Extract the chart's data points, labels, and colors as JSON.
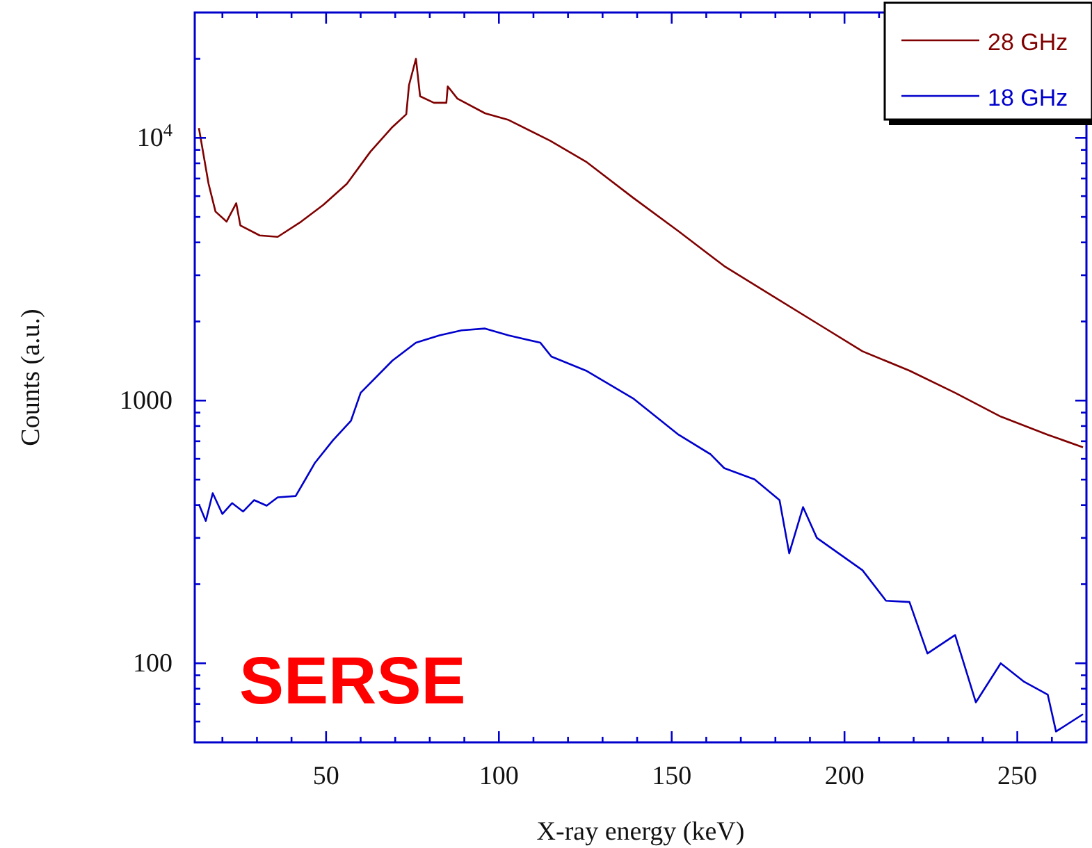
{
  "chart_data": {
    "type": "line",
    "xlabel": "X-ray energy (keV)",
    "ylabel": "Counts (a.u.)",
    "log": "y",
    "legend": "top right",
    "grid": false,
    "marker": "none",
    "line_style": "solid",
    "xlim": [
      12,
      270
    ],
    "ylim": [
      50,
      30000
    ],
    "xticks": [
      {
        "value": 20,
        "label": null
      },
      {
        "value": 30,
        "label": null
      },
      {
        "value": 40,
        "label": null
      },
      50,
      {
        "value": 60,
        "label": null
      },
      {
        "value": 70,
        "label": null
      },
      {
        "value": 80,
        "label": null
      },
      {
        "value": 90,
        "label": null
      },
      100,
      {
        "value": 110,
        "label": null
      },
      {
        "value": 120,
        "label": null
      },
      {
        "value": 130,
        "label": null
      },
      {
        "value": 140,
        "label": null
      },
      150,
      {
        "value": 160,
        "label": null
      },
      {
        "value": 170,
        "label": null
      },
      {
        "value": 180,
        "label": null
      },
      {
        "value": 190,
        "label": null
      },
      200,
      {
        "value": 210,
        "label": null
      },
      {
        "value": 220,
        "label": null
      },
      {
        "value": 230,
        "label": null
      },
      {
        "value": 240,
        "label": null
      },
      250,
      {
        "value": 260,
        "label": null
      }
    ],
    "yticks": [
      {
        "value": 60,
        "label": null
      },
      {
        "value": 70,
        "label": null
      },
      {
        "value": 80,
        "label": null
      },
      {
        "value": 90,
        "label": null
      },
      100,
      {
        "value": 200,
        "label": null
      },
      {
        "value": 300,
        "label": null
      },
      {
        "value": 400,
        "label": null
      },
      {
        "value": 500,
        "label": null
      },
      {
        "value": 600,
        "label": null
      },
      {
        "value": 700,
        "label": null
      },
      {
        "value": 800,
        "label": null
      },
      {
        "value": 900,
        "label": null
      },
      1000,
      {
        "value": 2000,
        "label": null
      },
      {
        "value": 3000,
        "label": null
      },
      {
        "value": 4000,
        "label": null
      },
      {
        "value": 5000,
        "label": null
      },
      {
        "value": 6000,
        "label": null
      },
      {
        "value": 7000,
        "label": null
      },
      {
        "value": 8000,
        "label": null
      },
      {
        "value": 9000,
        "label": null
      },
      {
        "value": 10000,
        "label": "10$^{4}$"
      },
      {
        "value": 20000,
        "label": null
      }
    ],
    "annotations": [
      "SERSE"
    ],
    "series": [
      {
        "name": "28 GHz",
        "color": "#800000",
        "x": [
          13.2,
          16,
          18,
          21.2,
          24,
          25.2,
          30.8,
          36,
          42.8,
          49.2,
          56,
          62.8,
          69.2,
          73.2,
          74,
          76,
          77.2,
          81.2,
          84.8,
          85.2,
          88,
          96,
          102.8,
          114.8,
          125.2,
          138.8,
          152,
          165.2,
          178.8,
          192,
          205.2,
          218.8,
          232,
          245.2,
          258.8,
          269
        ],
        "values": [
          10900,
          6680,
          5240,
          4800,
          5640,
          4640,
          4250,
          4200,
          4800,
          5560,
          6680,
          8850,
          11000,
          12300,
          15900,
          20000,
          14400,
          13600,
          13600,
          15700,
          14100,
          12400,
          11700,
          9760,
          8120,
          5920,
          4410,
          3250,
          2520,
          1970,
          1540,
          1300,
          1070,
          869,
          741,
          664
        ]
      },
      {
        "name": "18 GHz",
        "color": "#0000cc",
        "x": [
          13.2,
          15.2,
          17.2,
          20,
          22.8,
          26,
          29.2,
          32.8,
          36,
          41.2,
          44,
          46.8,
          52,
          57.2,
          60,
          69.2,
          76,
          82.8,
          89.2,
          96,
          102.8,
          112,
          115.2,
          125.2,
          138.8,
          152,
          161.2,
          165.2,
          174,
          181.2,
          184,
          188,
          192,
          205.2,
          212,
          218.8,
          224,
          232,
          238,
          245.2,
          252,
          258.8,
          261.2,
          269
        ],
        "values": [
          403,
          348,
          444,
          370,
          407,
          378,
          418,
          398,
          428,
          433,
          501,
          580,
          706,
          838,
          1070,
          1420,
          1660,
          1770,
          1850,
          1880,
          1770,
          1660,
          1470,
          1300,
          1020,
          741,
          625,
          553,
          501,
          418,
          262,
          393,
          300,
          226,
          173,
          171,
          109,
          128,
          71,
          100,
          85,
          76,
          55,
          64
        ]
      }
    ]
  }
}
